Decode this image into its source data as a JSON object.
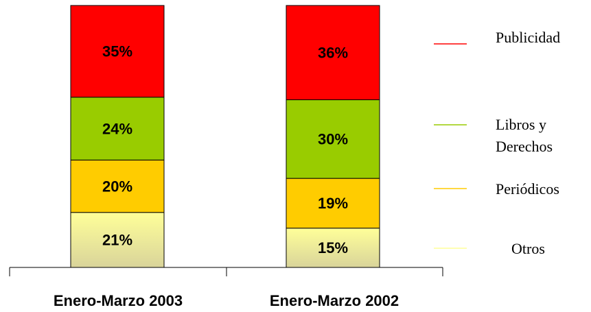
{
  "chart_data": {
    "type": "stacked_bar",
    "categories": [
      "Enero-Marzo 2003",
      "Enero-Marzo 2002"
    ],
    "series": [
      {
        "name": "Publicidad",
        "color": "#ff0000",
        "values": [
          35,
          36
        ],
        "value_labels": [
          "35%",
          "36%"
        ]
      },
      {
        "name": "Libros y Derechos",
        "color": "#99cc00",
        "values": [
          24,
          30
        ],
        "value_labels": [
          "24%",
          "30%"
        ]
      },
      {
        "name": "Periódicos",
        "color": "#ffcc00",
        "values": [
          20,
          19
        ],
        "value_labels": [
          "20%",
          "19%"
        ]
      },
      {
        "name": "Otros",
        "color": "#ffff99",
        "values": [
          21,
          15
        ],
        "value_labels": [
          "21%",
          "15%"
        ]
      }
    ],
    "ylim": [
      0,
      100
    ]
  }
}
